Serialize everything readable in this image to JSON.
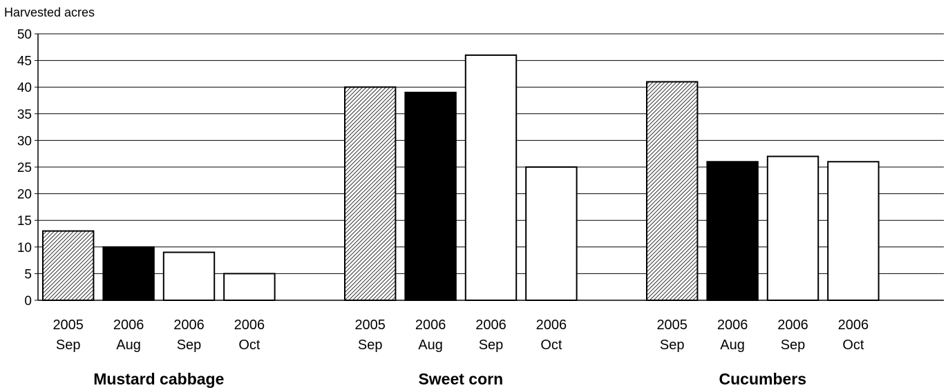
{
  "chart_data": {
    "type": "bar",
    "ylabel": "Harvested acres",
    "ylim": [
      0,
      50
    ],
    "yticks": [
      0,
      5,
      10,
      15,
      20,
      25,
      30,
      35,
      40,
      45,
      50
    ],
    "grid": true,
    "period_labels": [
      [
        "2005",
        "Sep"
      ],
      [
        "2006",
        "Aug"
      ],
      [
        "2006",
        "Sep"
      ],
      [
        "2006",
        "Oct"
      ]
    ],
    "period_fills": [
      "hatched",
      "black",
      "white",
      "white"
    ],
    "groups": [
      {
        "name": "Mustard cabbage",
        "values": [
          13,
          10,
          9,
          5
        ]
      },
      {
        "name": "Sweet corn",
        "values": [
          40,
          39,
          46,
          25
        ]
      },
      {
        "name": "Cucumbers",
        "values": [
          41,
          26,
          27,
          26
        ]
      }
    ]
  },
  "colors": {
    "bar_black": "#000000",
    "bar_white": "#ffffff",
    "grid": "#000000",
    "hatch": "#000000"
  }
}
